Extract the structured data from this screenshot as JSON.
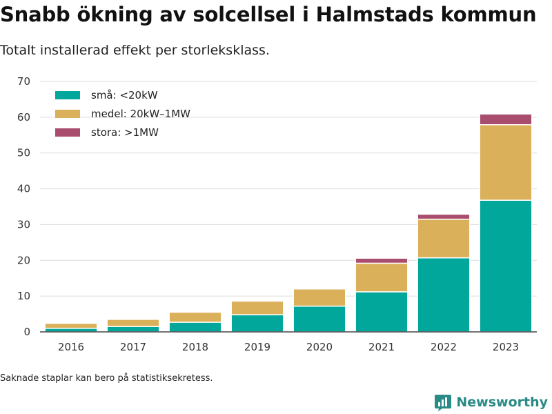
{
  "header": {
    "title": "Snabb ökning av solcellsel i Halmstads kommun",
    "subtitle": "Totalt installerad effekt per storleksklass."
  },
  "footer": {
    "note": "Saknade staplar kan bero på statistiksekretess.",
    "brand": "Newsworthy"
  },
  "colors": {
    "accent": "#2a8a86"
  },
  "chart_data": {
    "type": "bar",
    "stacked": true,
    "categories": [
      "2016",
      "2017",
      "2018",
      "2019",
      "2020",
      "2021",
      "2022",
      "2023"
    ],
    "series": [
      {
        "name": "små: <20kW",
        "color": "#00a79a",
        "values": [
          1.0,
          1.5,
          2.7,
          4.8,
          7.2,
          11.2,
          20.7,
          36.8
        ]
      },
      {
        "name": "medel: 20kW–1MW",
        "color": "#dbb05b",
        "values": [
          1.4,
          2.0,
          2.8,
          3.8,
          4.8,
          8.0,
          10.8,
          21.1
        ]
      },
      {
        "name": "stora: >1MW",
        "color": "#a94d6e",
        "values": [
          0,
          0,
          0,
          0,
          0,
          1.4,
          1.4,
          3.0
        ]
      }
    ],
    "ylim": [
      0,
      70
    ],
    "yticks": [
      0,
      10,
      20,
      30,
      40,
      50,
      60,
      70
    ],
    "grid": true,
    "legend_position": "top-left"
  }
}
